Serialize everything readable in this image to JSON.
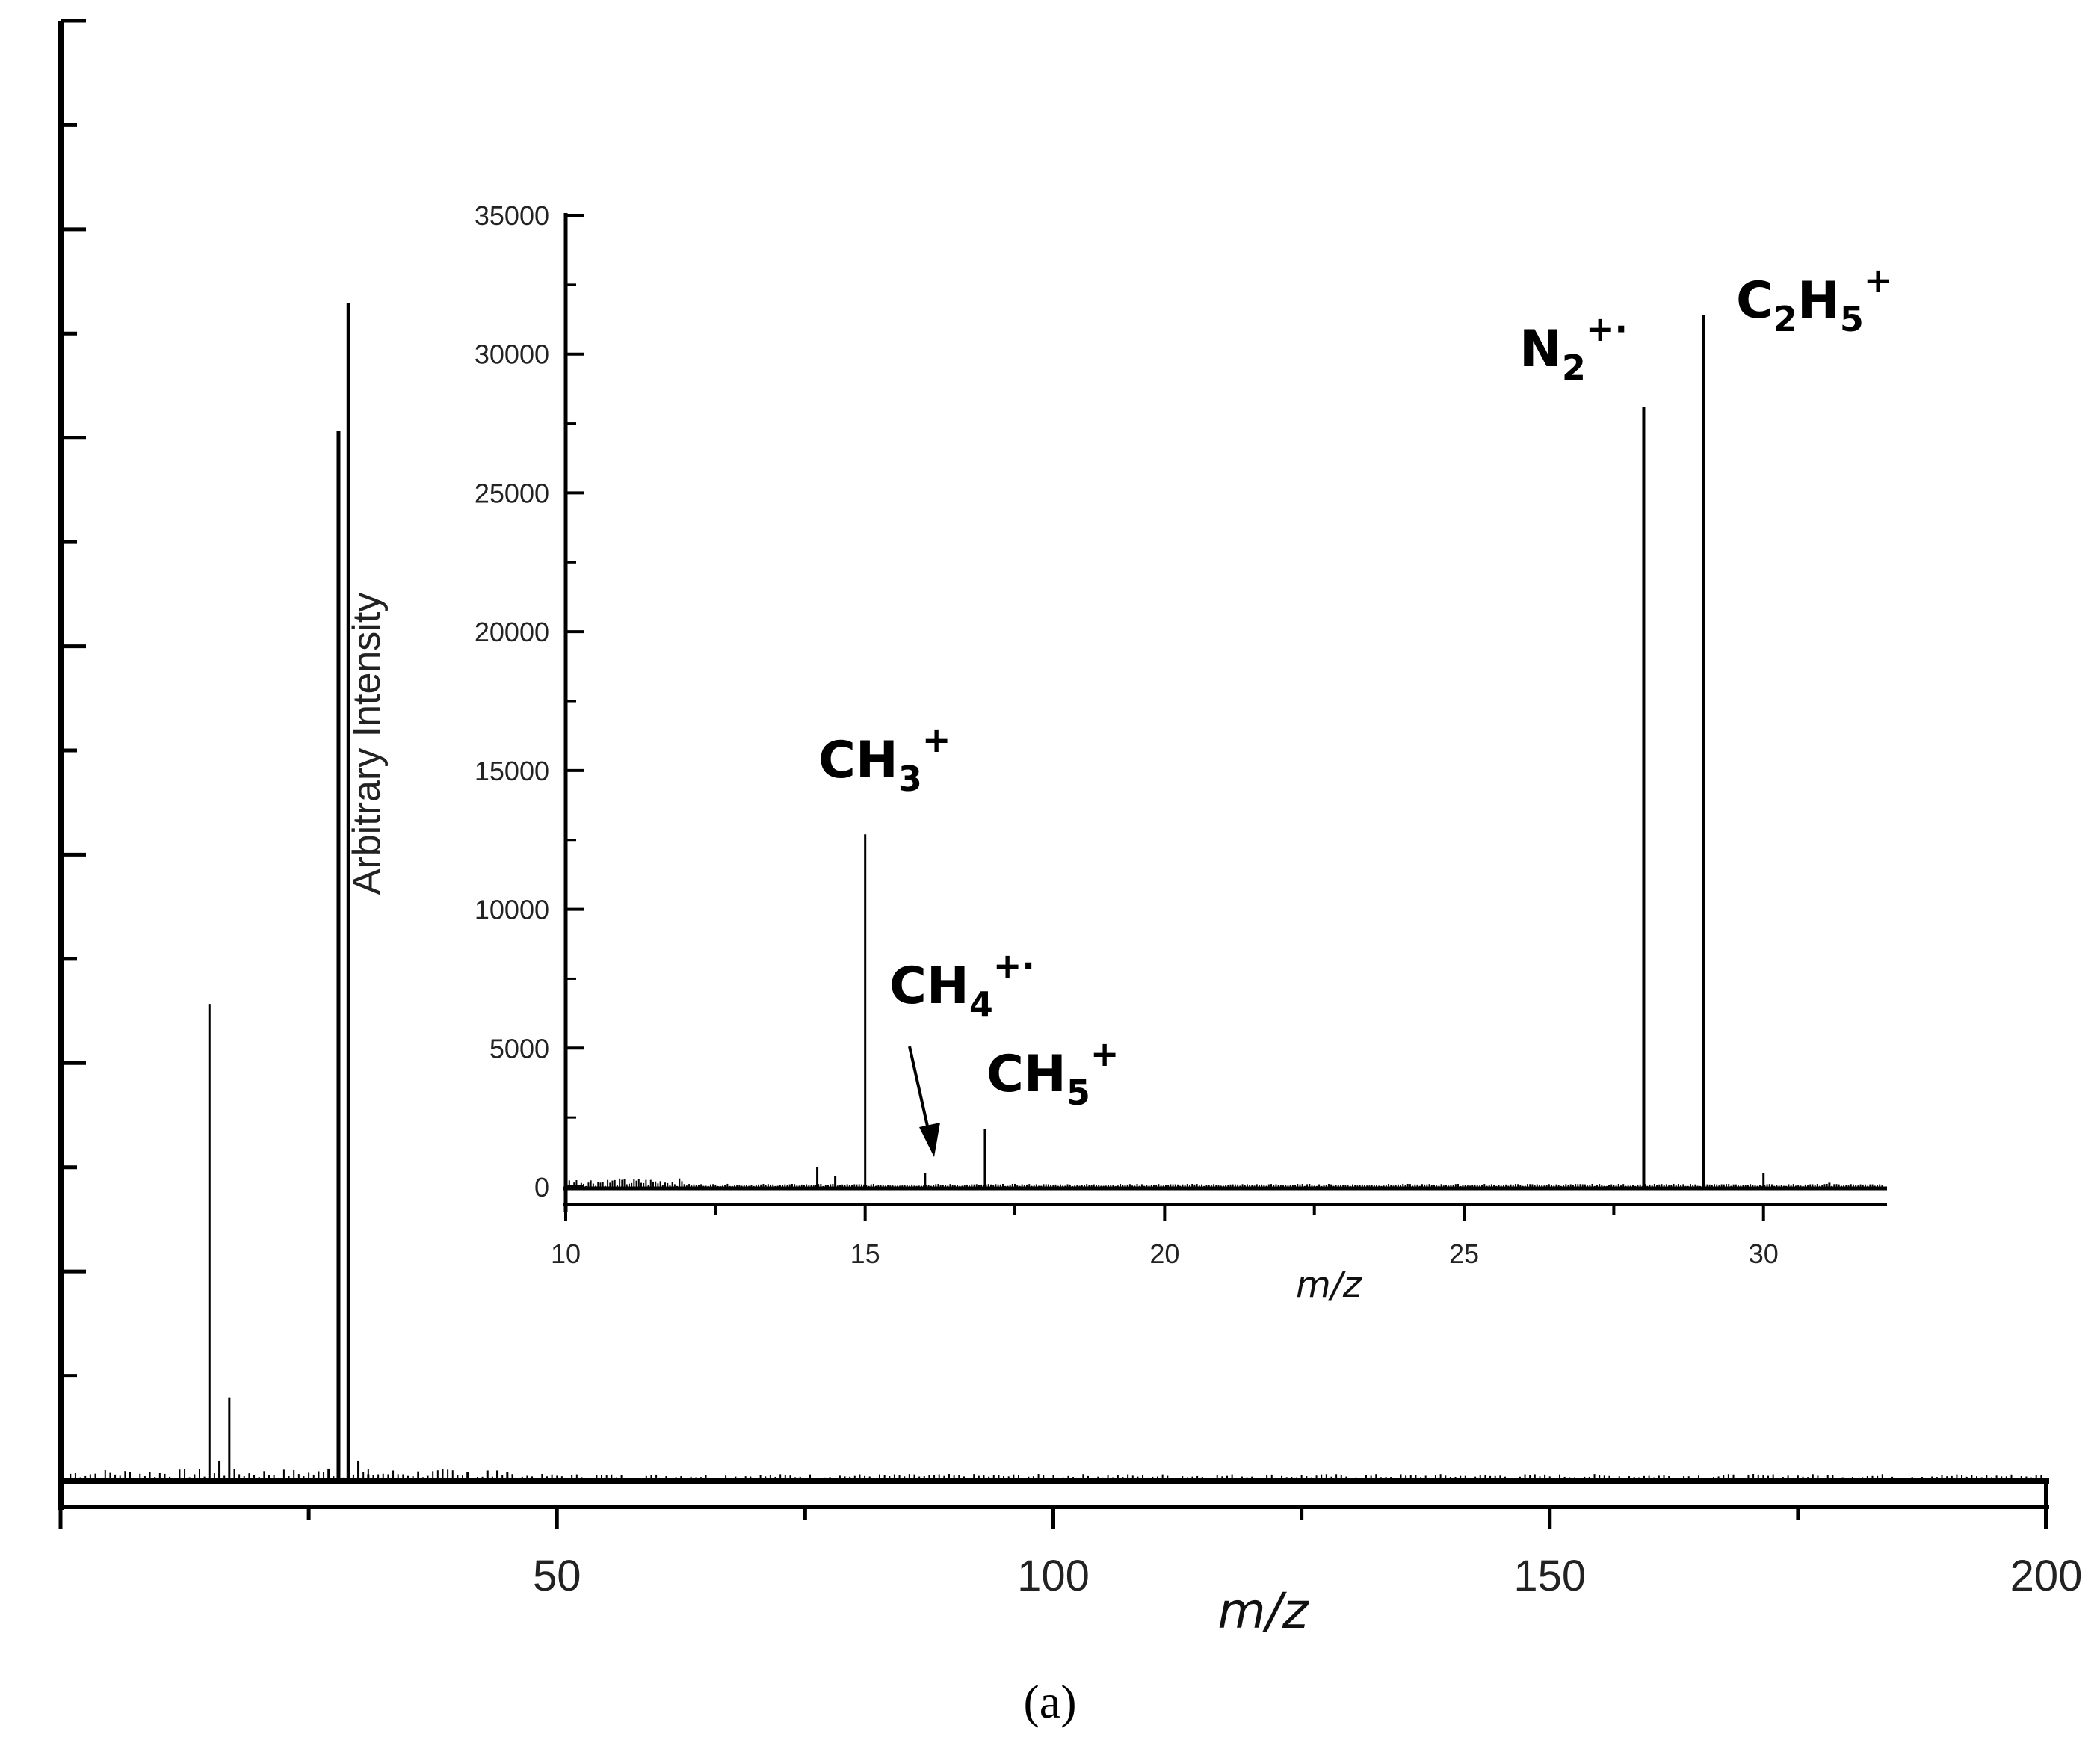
{
  "figure": {
    "panel_label": "(a)"
  },
  "chart_data": [
    {
      "id": "main",
      "type": "line",
      "xlabel": "m/z",
      "ylabel": "",
      "xlim": [
        0,
        200
      ],
      "ylim": [
        0,
        35000
      ],
      "xticks": [
        50,
        100,
        150,
        200
      ],
      "x_minor_ticks": [
        0,
        25,
        50,
        75,
        100,
        125,
        150,
        175,
        200
      ],
      "y_tick_count": 15,
      "grid": false,
      "peaks": [
        {
          "x": 15,
          "y": 12700
        },
        {
          "x": 16,
          "y": 500
        },
        {
          "x": 17,
          "y": 2200
        },
        {
          "x": 27,
          "y": 300
        },
        {
          "x": 28,
          "y": 28000
        },
        {
          "x": 29,
          "y": 31400
        },
        {
          "x": 30,
          "y": 500
        },
        {
          "x": 31,
          "y": 150
        },
        {
          "x": 41,
          "y": 200
        },
        {
          "x": 43,
          "y": 250
        },
        {
          "x": 44,
          "y": 250
        },
        {
          "x": 45,
          "y": 200
        }
      ]
    },
    {
      "id": "inset",
      "type": "line",
      "xlabel": "m/z",
      "ylabel": "Arbitrary Intensity",
      "xlim": [
        10,
        32
      ],
      "ylim": [
        0,
        35000
      ],
      "xticks": [
        10,
        15,
        20,
        25,
        30
      ],
      "yticks": [
        0,
        5000,
        10000,
        15000,
        20000,
        25000,
        30000,
        35000
      ],
      "grid": false,
      "peaks": [
        {
          "x": 14.2,
          "y": 700
        },
        {
          "x": 14.5,
          "y": 400
        },
        {
          "x": 15,
          "y": 12700
        },
        {
          "x": 16,
          "y": 500
        },
        {
          "x": 17,
          "y": 2100
        },
        {
          "x": 28,
          "y": 28100
        },
        {
          "x": 29,
          "y": 31400
        },
        {
          "x": 30,
          "y": 500
        },
        {
          "x": 31.1,
          "y": 150
        }
      ],
      "annotations": [
        {
          "id": "ch3",
          "base": "CH",
          "sub": "3",
          "sup": "+",
          "x": 15
        },
        {
          "id": "ch4",
          "base": "CH",
          "sub": "4",
          "sup": "+·",
          "x": 16
        },
        {
          "id": "ch5",
          "base": "CH",
          "sub": "5",
          "sup": "+",
          "x": 17
        },
        {
          "id": "n2",
          "base": "N",
          "sub": "2",
          "sup": "+·",
          "x": 28
        },
        {
          "id": "c2h5",
          "base": "C",
          "sub": "2",
          "mid": "H",
          "sub2": "5",
          "sup": "+",
          "x": 29
        }
      ]
    }
  ]
}
